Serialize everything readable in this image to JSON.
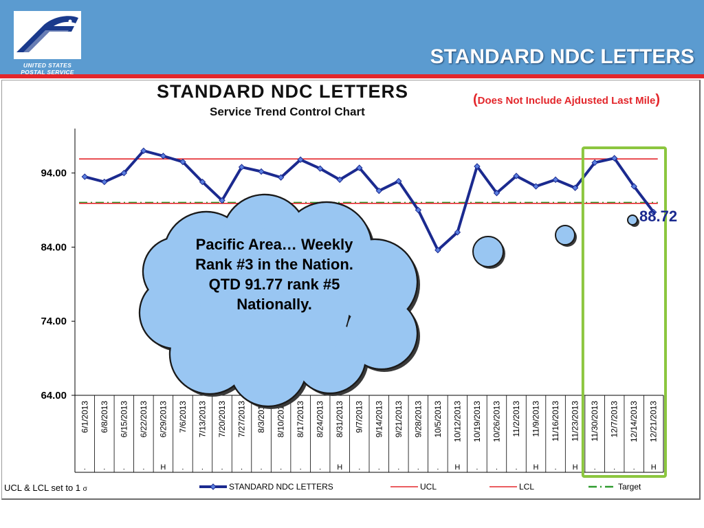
{
  "header": {
    "title": "STANDARD NDC LETTERS",
    "logo_line1": "UNITED STATES",
    "logo_line2": "POSTAL SERVICE",
    "bg_color": "#5b9bd0",
    "rule_color": "#e3262b"
  },
  "chart_note": {
    "open": "(",
    "text": "Does Not Include  Ajdusted Last Mile",
    "close": ")"
  },
  "callout": {
    "text": "Pacific Area… Weekly Rank #3 in the Nation. QTD 91.77 rank #5 Nationally."
  },
  "footnote": {
    "text": "UCL & LCL set to 1 ",
    "symbol": "σ"
  },
  "highlight": {
    "color": "#8cc63f",
    "from": "11/30/2013",
    "to": "12/21/2013"
  },
  "chart_data": {
    "type": "line",
    "title": "STANDARD NDC LETTERS",
    "subtitle": "Service Trend Control Chart",
    "ylim": [
      64,
      100
    ],
    "yticks": [
      "94.00",
      "84.00",
      "74.00",
      "64.00"
    ],
    "ytick_values": [
      94,
      84,
      74,
      64
    ],
    "grid": false,
    "legend_position": "bottom",
    "categories": [
      "6/1/2013",
      "6/8/2013",
      "6/15/2013",
      "6/22/2013",
      "6/29/2013",
      "7/6/2013",
      "7/13/2013",
      "7/20/2013",
      "7/27/2013",
      "8/3/2013",
      "8/10/2013",
      "8/17/2013",
      "8/24/2013",
      "8/31/2013",
      "9/7/2013",
      "9/14/2013",
      "9/21/2013",
      "9/28/2013",
      "10/5/2013",
      "10/12/2013",
      "10/19/2013",
      "10/26/2013",
      "11/2/2013",
      "11/9/2013",
      "11/16/2013",
      "11/23/2013",
      "11/30/2013",
      "12/7/2013",
      "12/14/2013",
      "12/21/2013"
    ],
    "markers": [
      ".",
      ".",
      ".",
      ".",
      "H",
      ".",
      ".",
      ".",
      ".",
      ".",
      ".",
      ".",
      ".",
      "H",
      ".",
      ".",
      ".",
      ".",
      ".",
      "H",
      ".",
      ".",
      ".",
      "H",
      ".",
      "H",
      ".",
      ".",
      ".",
      "H"
    ],
    "series": [
      {
        "name": "STANDARD NDC LETTERS",
        "color": "#1b2a8f",
        "values": [
          93.5,
          92.8,
          94.0,
          97.0,
          96.3,
          95.5,
          92.8,
          90.3,
          94.8,
          94.2,
          93.4,
          95.8,
          94.6,
          93.1,
          94.7,
          91.6,
          92.9,
          89.0,
          83.6,
          86.0,
          94.9,
          91.3,
          93.6,
          92.2,
          93.1,
          92.0,
          95.4,
          96.0,
          92.2,
          88.72
        ]
      },
      {
        "name": "UCL",
        "color": "#e3262b",
        "values": [
          95.9,
          95.9,
          95.9,
          95.9,
          95.9,
          95.9,
          95.9,
          95.9,
          95.9,
          95.9,
          95.9,
          95.9,
          95.9,
          95.9,
          95.9,
          95.9,
          95.9,
          95.9,
          95.9,
          95.9,
          95.9,
          95.9,
          95.9,
          95.9,
          95.9,
          95.9,
          95.9,
          95.9,
          95.9,
          95.9
        ]
      },
      {
        "name": "LCL",
        "color": "#e3262b",
        "values": [
          89.9,
          89.9,
          89.9,
          89.9,
          89.9,
          89.9,
          89.9,
          89.9,
          89.9,
          89.9,
          89.9,
          89.9,
          89.9,
          89.9,
          89.9,
          89.9,
          89.9,
          89.9,
          89.9,
          89.9,
          89.9,
          89.9,
          89.9,
          89.9,
          89.9,
          89.9,
          89.9,
          89.9,
          89.9,
          89.9
        ]
      },
      {
        "name": "Target",
        "color": "#2e9b2e",
        "values": [
          90.0,
          90.0,
          90.0,
          90.0,
          90.0,
          90.0,
          90.0,
          90.0,
          90.0,
          90.0,
          90.0,
          90.0,
          90.0,
          90.0,
          90.0,
          90.0,
          90.0,
          90.0,
          90.0,
          90.0,
          90.0,
          90.0,
          90.0,
          90.0,
          90.0,
          90.0,
          90.0,
          90.0,
          90.0,
          90.0
        ]
      }
    ],
    "last_value_label": "88.72"
  }
}
